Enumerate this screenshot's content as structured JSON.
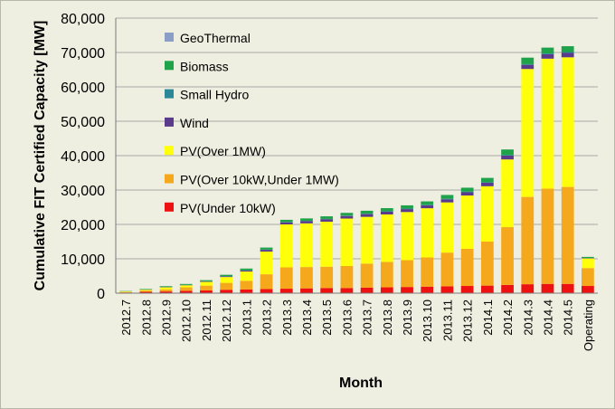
{
  "chart_data": {
    "type": "bar",
    "stacked": true,
    "title": "",
    "xlabel": "Month",
    "ylabel": "Cumulative FIT Certified Capacity [MW]",
    "ylim": [
      0,
      80000
    ],
    "yticks": [
      0,
      10000,
      20000,
      30000,
      40000,
      50000,
      60000,
      70000,
      80000
    ],
    "ytick_labels": [
      "0",
      "10,000",
      "20,000",
      "30,000",
      "40,000",
      "50,000",
      "60,000",
      "70,000",
      "80,000"
    ],
    "grid": "horizontal",
    "legend_position": "top-left",
    "categories": [
      "2012.7",
      "2012.8",
      "2012.9",
      "2012.10",
      "2012.11",
      "2012.12",
      "2013.1",
      "2013.2",
      "2013.3",
      "2013.4",
      "2013.5",
      "2013.6",
      "2013.7",
      "2013.8",
      "2013.9",
      "2013.10",
      "2013.11",
      "2013.12",
      "2014.1",
      "2014.2",
      "2014.3",
      "2014.4",
      "2014.5",
      "Operating"
    ],
    "series": [
      {
        "name": "PV(Under 10kW)",
        "color": "#ee1111",
        "values": [
          200,
          400,
          500,
          700,
          800,
          1000,
          1100,
          1200,
          1300,
          1400,
          1500,
          1500,
          1600,
          1700,
          1800,
          1900,
          2000,
          2100,
          2200,
          2400,
          2600,
          2700,
          2700,
          2100
        ]
      },
      {
        "name": "PV(Over 10kW,Under 1MW)",
        "color": "#f5a81c",
        "values": [
          100,
          300,
          600,
          1000,
          1400,
          2000,
          2500,
          4300,
          6200,
          6200,
          6200,
          6400,
          7000,
          7400,
          7800,
          8500,
          9800,
          10800,
          12800,
          16800,
          25400,
          27700,
          28200,
          5200
        ]
      },
      {
        "name": "PV(Over 1MW)",
        "color": "#ffff0a",
        "values": [
          200,
          300,
          600,
          600,
          1100,
          1700,
          2700,
          6600,
          12500,
          12700,
          13100,
          13800,
          13600,
          13800,
          14000,
          14300,
          14600,
          15500,
          16100,
          19700,
          37200,
          37800,
          37700,
          2800
        ]
      },
      {
        "name": "Wind",
        "color": "#5a3a8a",
        "values": [
          30,
          50,
          100,
          100,
          150,
          200,
          300,
          500,
          600,
          650,
          700,
          750,
          800,
          800,
          850,
          850,
          900,
          950,
          1000,
          1100,
          1200,
          1300,
          1300,
          100
        ]
      },
      {
        "name": "Small Hydro",
        "color": "#2a8898",
        "values": [
          10,
          20,
          30,
          30,
          40,
          50,
          60,
          70,
          80,
          90,
          100,
          110,
          120,
          130,
          140,
          150,
          160,
          170,
          180,
          190,
          200,
          220,
          230,
          50
        ]
      },
      {
        "name": "Biomass",
        "color": "#1ea24a",
        "values": [
          80,
          150,
          200,
          250,
          300,
          400,
          500,
          600,
          650,
          700,
          750,
          800,
          850,
          900,
          950,
          1000,
          1100,
          1150,
          1250,
          1600,
          1900,
          1700,
          1700,
          300
        ]
      },
      {
        "name": "GeoThermal",
        "color": "#8a9ec8",
        "values": [
          5,
          5,
          5,
          5,
          10,
          10,
          10,
          10,
          10,
          10,
          10,
          10,
          10,
          10,
          10,
          10,
          10,
          10,
          10,
          10,
          10,
          10,
          10,
          5
        ]
      }
    ],
    "legend_order": [
      "GeoThermal",
      "Biomass",
      "Small Hydro",
      "Wind",
      "PV(Over 1MW)",
      "PV(Over 10kW,Under 1MW)",
      "PV(Under 10kW)"
    ]
  }
}
